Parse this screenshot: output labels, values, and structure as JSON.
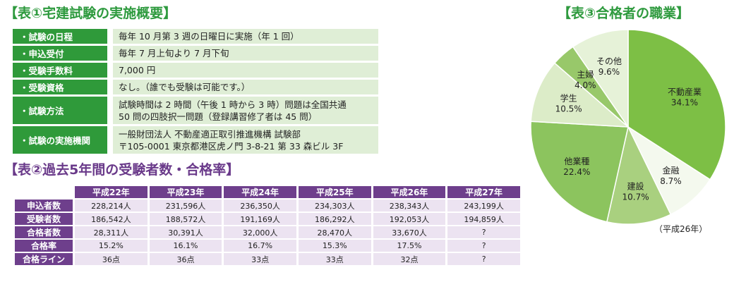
{
  "table1": {
    "title": "【表①宅建試験の実施概要】",
    "rows": [
      {
        "label": "・試験の日程",
        "lines": [
          "毎年 10 月第 3 週の日曜日に実施（年 1 回）"
        ]
      },
      {
        "label": "・申込受付",
        "lines": [
          "毎年 7 月上旬より 7 月下旬"
        ]
      },
      {
        "label": "・受験手数料",
        "lines": [
          "7,000 円"
        ]
      },
      {
        "label": "・受験資格",
        "lines": [
          "なし。（誰でも受験は可能です。）"
        ]
      },
      {
        "label": "・試験方法",
        "lines": [
          "試験時間は 2 時間（午後 1 時から 3 時）問題は全国共通",
          "50 問の四肢択一問題（登録講習修了者は 45 問）"
        ]
      },
      {
        "label": "・試験の実施機関",
        "lines": [
          "一般財団法人 不動産適正取引推進機構 試験部",
          "〒105-0001 東京都港区虎ノ門 3-8-21 第 33 森ビル 3F"
        ]
      }
    ]
  },
  "table2": {
    "title": "【表②過去5年間の受験者数・合格率】",
    "headers": [
      "平成22年",
      "平成23年",
      "平成24年",
      "平成25年",
      "平成26年",
      "平成27年"
    ],
    "rows": [
      {
        "label": "申込者数",
        "values": [
          "228,214人",
          "231,596人",
          "236,350人",
          "234,303人",
          "238,343人",
          "243,199人"
        ]
      },
      {
        "label": "受験者数",
        "values": [
          "186,542人",
          "188,572人",
          "191,169人",
          "186,292人",
          "192,053人",
          "194,859人"
        ]
      },
      {
        "label": "合格者数",
        "values": [
          "28,311人",
          "30,391人",
          "32,000人",
          "28,470人",
          "33,670人",
          "?"
        ]
      },
      {
        "label": "合格率",
        "values": [
          "15.2%",
          "16.1%",
          "16.7%",
          "15.3%",
          "17.5%",
          "?"
        ]
      },
      {
        "label": "合格ライン",
        "values": [
          "36点",
          "36点",
          "33点",
          "33点",
          "32点",
          "?"
        ]
      }
    ]
  },
  "chart_data": {
    "type": "pie",
    "title": "【表③合格者の職業】",
    "note": "（平成26年）",
    "slices": [
      {
        "name": "不動産業",
        "value": 34.1,
        "label": "34.1%",
        "color": "#7dbf45"
      },
      {
        "name": "金融",
        "value": 8.7,
        "label": "8.7%",
        "color": "#f4f9ee"
      },
      {
        "name": "建設",
        "value": 10.7,
        "label": "10.7%",
        "color": "#a9d07f"
      },
      {
        "name": "他業種",
        "value": 22.4,
        "label": "22.4%",
        "color": "#8cc45e"
      },
      {
        "name": "学生",
        "value": 10.5,
        "label": "10.5%",
        "color": "#dcecc8"
      },
      {
        "name": "主婦",
        "value": 4.0,
        "label": "4.0%",
        "color": "#98c86a"
      },
      {
        "name": "その他",
        "value": 9.6,
        "label": "9.6%",
        "color": "#e6f2d8"
      }
    ],
    "stroke": "#ffffff"
  }
}
